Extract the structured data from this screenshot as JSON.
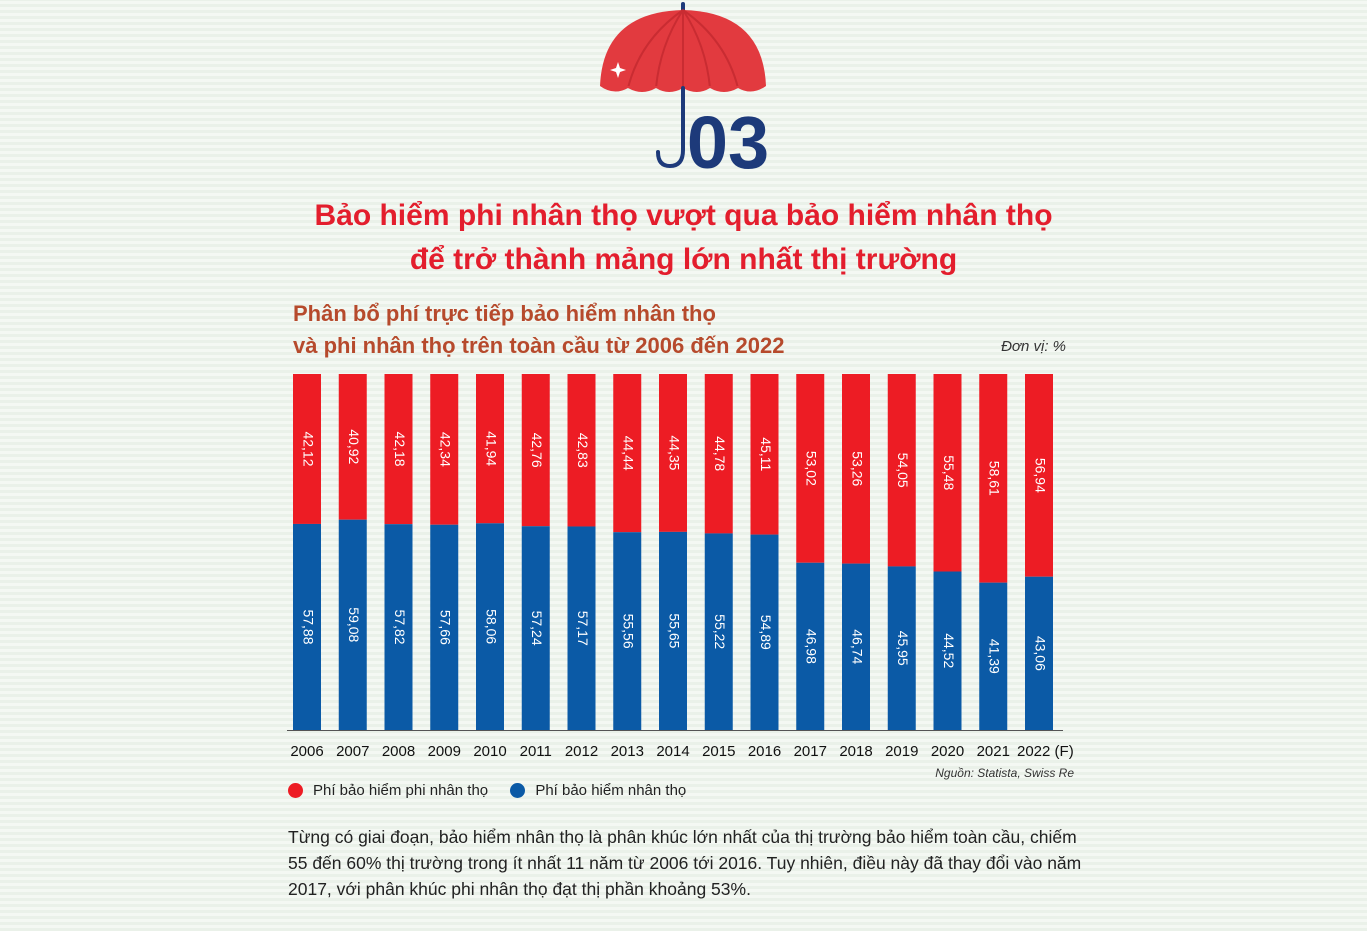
{
  "header": {
    "section_number": "03",
    "title_line1": "Bảo hiểm phi nhân thọ vượt qua bảo hiểm nhân thọ",
    "title_line2": "để trở thành mảng lớn nhất thị trường"
  },
  "chart_data": {
    "type": "bar",
    "stacked": true,
    "orientation": "vertical",
    "title": "Phân bổ phí trực tiếp bảo hiểm nhân thọ và phi nhân thọ trên toàn cầu từ 2006 đến 2022",
    "title_line1": "Phân bổ phí trực tiếp bảo hiểm nhân thọ",
    "title_line2": "và phi nhân thọ trên toàn cầu từ 2006 đến 2022",
    "unit_label": "Đơn vị: %",
    "categories": [
      "2006",
      "2007",
      "2008",
      "2009",
      "2010",
      "2011",
      "2012",
      "2013",
      "2014",
      "2015",
      "2016",
      "2017",
      "2018",
      "2019",
      "2020",
      "2021",
      "2022 (F)"
    ],
    "series": [
      {
        "name": "Phí bảo hiểm phi nhân thọ",
        "color": "#ed1c24",
        "values": [
          42.12,
          40.92,
          42.18,
          42.34,
          41.94,
          42.76,
          42.83,
          44.44,
          44.35,
          44.78,
          45.11,
          53.02,
          53.26,
          54.05,
          55.48,
          58.61,
          56.94
        ],
        "labels": [
          "42,12",
          "40,92",
          "42,18",
          "42,34",
          "41,94",
          "42,76",
          "42,83",
          "44,44",
          "44,35",
          "44,78",
          "45,11",
          "53,02",
          "53,26",
          "54,05",
          "55,48",
          "58,61",
          "56,94"
        ]
      },
      {
        "name": "Phí bảo hiểm nhân thọ",
        "color": "#0b5aa6",
        "values": [
          57.88,
          59.08,
          57.82,
          57.66,
          58.06,
          57.24,
          57.17,
          55.56,
          55.65,
          55.22,
          54.89,
          46.98,
          46.74,
          45.95,
          44.52,
          41.39,
          43.06
        ],
        "labels": [
          "57,88",
          "59,08",
          "57,82",
          "57,66",
          "58,06",
          "57,24",
          "57,17",
          "55,56",
          "55,65",
          "55,22",
          "54,89",
          "46,98",
          "46,74",
          "45,95",
          "44,52",
          "41,39",
          "43,06"
        ]
      }
    ],
    "ylim": [
      0,
      100
    ],
    "grid": false,
    "legend_position": "bottom-left",
    "source": "Nguồn: Statista, Swiss Re"
  },
  "body_text": "Từng có giai đoạn, bảo hiểm nhân thọ là phân khúc lớn nhất của thị trường bảo hiểm toàn cầu, chiếm 55 đến 60% thị trường trong ít nhất 11 năm từ 2006 tới 2016. Tuy nhiên, điều này đã thay đổi vào năm 2017, với phân khúc phi nhân thọ đạt thị phần khoảng 53%.",
  "colors": {
    "title_red": "#e31e2d",
    "chart_title_brown": "#b64a2c",
    "umbrella_red": "#e23a3f",
    "navy": "#1d3a7a"
  }
}
